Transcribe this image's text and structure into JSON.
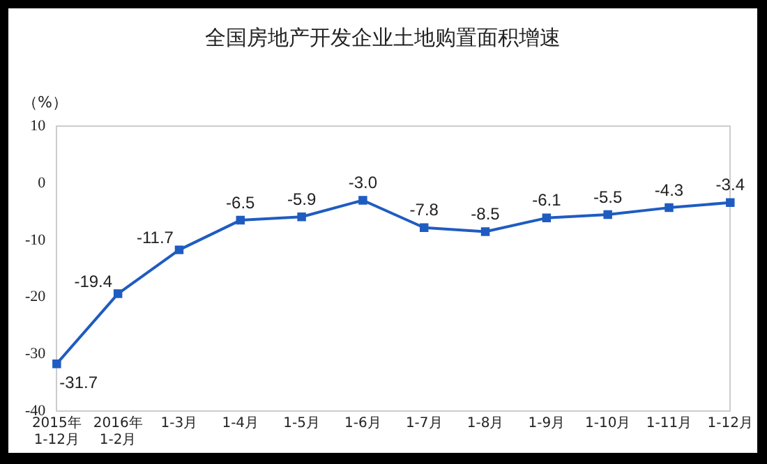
{
  "chart_data": {
    "type": "line",
    "title": "全国房地产开发企业土地购置面积增速",
    "ylabel": "（%）",
    "categories": [
      "2015年\n1-12月",
      "2016年\n1-2月",
      "1-3月",
      "1-4月",
      "1-5月",
      "1-6月",
      "1-7月",
      "1-8月",
      "1-9月",
      "1-10月",
      "1-11月",
      "1-12月"
    ],
    "series": [
      {
        "color": "#1f5cc1",
        "values": [
          -31.7,
          -19.4,
          -11.7,
          -6.5,
          -5.9,
          -3.0,
          -7.8,
          -8.5,
          -6.1,
          -5.5,
          -4.3,
          -3.4
        ]
      }
    ],
    "ylim": [
      -40,
      10
    ],
    "yticks": [
      {
        "value": -40,
        "label": "-40"
      },
      {
        "value": -30,
        "label": "-30"
      },
      {
        "value": -20,
        "label": "-20"
      },
      {
        "value": -10,
        "label": "-10"
      },
      {
        "value": 0,
        "label": "0"
      },
      {
        "value": 10,
        "label": "10"
      }
    ],
    "value_labels": [
      "-31.7",
      "-19.4",
      "-11.7",
      "-6.5",
      "-5.9",
      "-3.0",
      "-7.8",
      "-8.5",
      "-6.1",
      "-5.5",
      "-4.3",
      "-3.4"
    ],
    "grid": false,
    "legend": false,
    "marker": "square",
    "line_style": "solid"
  }
}
